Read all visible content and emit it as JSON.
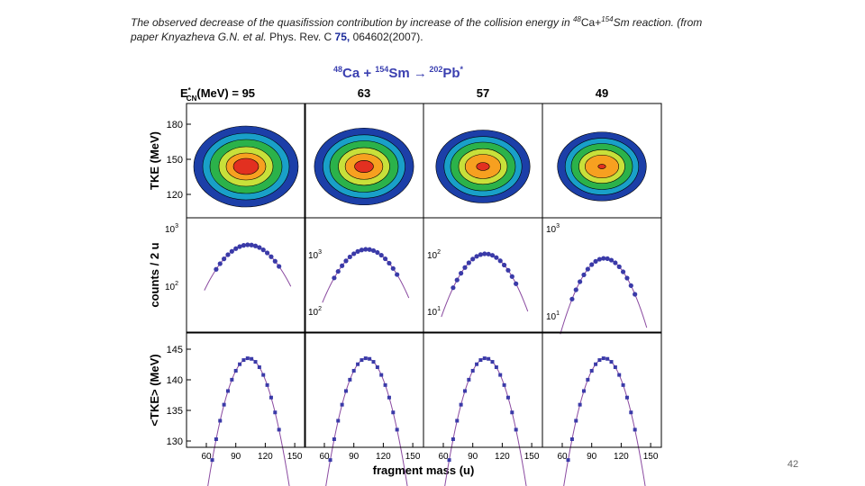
{
  "caption": {
    "line1": "The observed decrease of the quasifission contribution by increase of the collision energy in ",
    "ca": "48",
    "ca_sym": "Ca+",
    "sm": "154",
    "sm_sym": "Sm reaction.  (from",
    "line2a": "paper Knyazheva G.N. et al.",
    "line2b": " Phys. Rev. C ",
    "vol": "75,",
    "line2c": " 064602(2007)."
  },
  "figure": {
    "title": {
      "a": "48",
      "b": "Ca + ",
      "c": "154",
      "d": "Sm ",
      "arrow": "→",
      "e": " 202",
      "f": "Pb",
      "g": "*"
    },
    "energy_label": {
      "e": "E",
      "star": "*",
      "sub": "CN",
      "rest": "(MeV) = 95"
    },
    "columns": [
      "63",
      "57",
      "49"
    ],
    "row_labels": [
      "TKE (MeV)",
      "counts / 2 u",
      "<TKE> (MeV)"
    ],
    "tke_ticks": [
      180,
      150,
      120
    ],
    "mean_tke_ticks": [
      145,
      140,
      135,
      130
    ],
    "count_ticks": [
      [
        {
          "base": "10",
          "exp": "3"
        },
        {
          "base": "10",
          "exp": "2"
        }
      ],
      [
        {
          "base": "10",
          "exp": "3"
        },
        {
          "base": "10",
          "exp": "2"
        }
      ],
      [
        {
          "base": "10",
          "exp": "2"
        },
        {
          "base": "10",
          "exp": "1"
        }
      ],
      [
        {
          "base": "10",
          "exp": "3"
        },
        {
          "base": "10",
          "exp": "1"
        }
      ]
    ],
    "xticks": [
      60,
      90,
      120,
      150
    ],
    "xlabel": "fragment mass (u)"
  },
  "page_number": "42"
}
